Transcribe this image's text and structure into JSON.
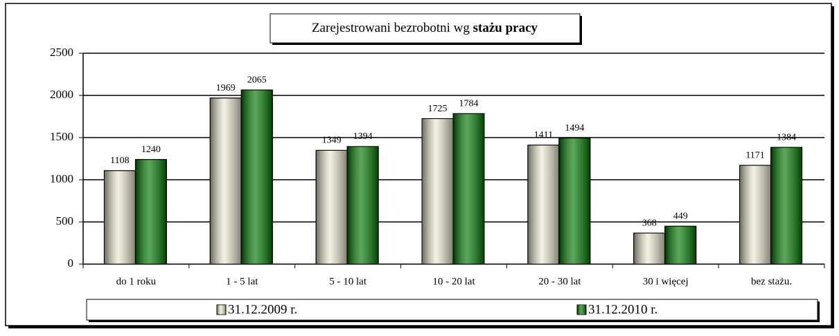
{
  "chart_data": {
    "type": "bar",
    "title": [
      "Zarejestrowani bezrobotni wg ",
      "stażu pracy"
    ],
    "categories": [
      "do 1 roku",
      "1 - 5 lat",
      "5 - 10 lat",
      "10 - 20 lat",
      "20 - 30 lat",
      "30 i więcej",
      "bez stażu."
    ],
    "series": [
      {
        "name": "31.12.2009 r.",
        "color": "#eeead2",
        "values": [
          1108,
          1969,
          1349,
          1725,
          1411,
          368,
          1171
        ]
      },
      {
        "name": "31.12.2010 r.",
        "color": "#007800",
        "values": [
          1240,
          2065,
          1394,
          1784,
          1494,
          449,
          1384
        ]
      }
    ],
    "ylim": [
      0,
      2500
    ],
    "yticks": [
      0,
      500,
      1000,
      1500,
      2000,
      2500
    ],
    "grid": true,
    "legend": "bottom"
  }
}
